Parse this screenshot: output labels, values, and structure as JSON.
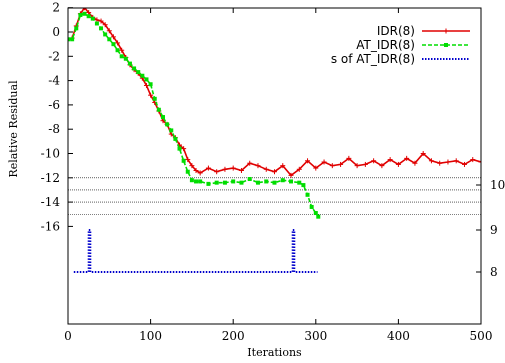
{
  "chart_data": {
    "type": "line",
    "xlabel": "Iterations",
    "ylabel": "Relative Residual",
    "xlim": [
      0,
      500
    ],
    "ylim": [
      -16,
      2
    ],
    "x_ticks": [
      "0",
      "100",
      "200",
      "300",
      "400",
      "500"
    ],
    "y_ticks": [
      "2",
      "0",
      "-2",
      "-4",
      "-6",
      "-8",
      "-10",
      "-12",
      "-14",
      "-16"
    ],
    "y2_ticks": [
      "10",
      "9",
      "8"
    ],
    "y2_note": "right axis shows s, with 8 at left-axis -22.6, 9 at -19.6 and 10 at -15.5 (spacing unequal as drawn)",
    "reference_lines": [
      -12,
      -13,
      -14,
      -15
    ],
    "legend_position": "top-right",
    "series": [
      {
        "name": "IDR(8)",
        "color": "#e00000",
        "style": "solid",
        "marker": "plus",
        "points": [
          [
            0,
            -0.6
          ],
          [
            5,
            -0.5
          ],
          [
            10,
            0.5
          ],
          [
            15,
            1.5
          ],
          [
            20,
            2.0
          ],
          [
            25,
            1.6
          ],
          [
            30,
            1.2
          ],
          [
            35,
            1.0
          ],
          [
            40,
            0.9
          ],
          [
            45,
            0.6
          ],
          [
            50,
            0.1
          ],
          [
            55,
            -0.4
          ],
          [
            60,
            -0.9
          ],
          [
            65,
            -1.5
          ],
          [
            70,
            -2.1
          ],
          [
            75,
            -2.7
          ],
          [
            80,
            -3.1
          ],
          [
            85,
            -3.4
          ],
          [
            90,
            -3.8
          ],
          [
            95,
            -4.4
          ],
          [
            100,
            -5.2
          ],
          [
            105,
            -5.8
          ],
          [
            110,
            -6.5
          ],
          [
            115,
            -7.3
          ],
          [
            120,
            -7.6
          ],
          [
            125,
            -8.4
          ],
          [
            130,
            -8.7
          ],
          [
            135,
            -9.3
          ],
          [
            140,
            -9.6
          ],
          [
            145,
            -10.5
          ],
          [
            150,
            -11.0
          ],
          [
            155,
            -11.4
          ],
          [
            160,
            -11.6
          ],
          [
            170,
            -11.2
          ],
          [
            180,
            -11.5
          ],
          [
            190,
            -11.3
          ],
          [
            200,
            -11.2
          ],
          [
            210,
            -11.4
          ],
          [
            220,
            -10.8
          ],
          [
            230,
            -11.0
          ],
          [
            240,
            -11.3
          ],
          [
            250,
            -11.5
          ],
          [
            260,
            -11.0
          ],
          [
            270,
            -11.8
          ],
          [
            280,
            -11.3
          ],
          [
            290,
            -10.6
          ],
          [
            300,
            -11.2
          ],
          [
            310,
            -10.7
          ],
          [
            320,
            -11.0
          ],
          [
            330,
            -10.9
          ],
          [
            340,
            -10.4
          ],
          [
            350,
            -11.0
          ],
          [
            360,
            -10.9
          ],
          [
            370,
            -10.6
          ],
          [
            380,
            -11.0
          ],
          [
            390,
            -10.5
          ],
          [
            400,
            -10.9
          ],
          [
            410,
            -10.4
          ],
          [
            420,
            -10.8
          ],
          [
            430,
            -10.0
          ],
          [
            440,
            -10.6
          ],
          [
            450,
            -10.8
          ],
          [
            460,
            -10.7
          ],
          [
            470,
            -10.6
          ],
          [
            480,
            -10.9
          ],
          [
            490,
            -10.5
          ],
          [
            500,
            -10.7
          ]
        ]
      },
      {
        "name": "AT_IDR(8)",
        "color": "#00dd00",
        "style": "dashed",
        "marker": "square",
        "points": [
          [
            0,
            -0.6
          ],
          [
            5,
            -0.6
          ],
          [
            10,
            0.3
          ],
          [
            15,
            1.4
          ],
          [
            20,
            1.5
          ],
          [
            25,
            1.3
          ],
          [
            30,
            1.1
          ],
          [
            35,
            0.7
          ],
          [
            40,
            0.3
          ],
          [
            45,
            -0.2
          ],
          [
            50,
            -0.6
          ],
          [
            55,
            -1.0
          ],
          [
            60,
            -1.5
          ],
          [
            65,
            -2.0
          ],
          [
            70,
            -2.2
          ],
          [
            75,
            -2.6
          ],
          [
            80,
            -3.0
          ],
          [
            85,
            -3.3
          ],
          [
            90,
            -3.6
          ],
          [
            95,
            -3.9
          ],
          [
            100,
            -4.3
          ],
          [
            105,
            -5.5
          ],
          [
            110,
            -6.4
          ],
          [
            115,
            -7.0
          ],
          [
            120,
            -7.6
          ],
          [
            125,
            -8.1
          ],
          [
            130,
            -8.8
          ],
          [
            135,
            -9.6
          ],
          [
            140,
            -10.6
          ],
          [
            145,
            -11.5
          ],
          [
            150,
            -12.2
          ],
          [
            155,
            -12.3
          ],
          [
            160,
            -12.3
          ],
          [
            170,
            -12.5
          ],
          [
            180,
            -12.4
          ],
          [
            190,
            -12.4
          ],
          [
            200,
            -12.3
          ],
          [
            210,
            -12.4
          ],
          [
            220,
            -12.1
          ],
          [
            230,
            -12.4
          ],
          [
            240,
            -12.3
          ],
          [
            250,
            -12.4
          ],
          [
            260,
            -12.2
          ],
          [
            270,
            -12.3
          ],
          [
            280,
            -12.4
          ],
          [
            285,
            -12.6
          ],
          [
            290,
            -13.4
          ],
          [
            295,
            -14.4
          ],
          [
            300,
            -14.9
          ],
          [
            303,
            -15.2
          ]
        ]
      },
      {
        "name": "s of AT_IDR(8)",
        "color": "#0000cc",
        "style": "dotted",
        "axis": "right",
        "points": [
          [
            7,
            8
          ],
          [
            25,
            8
          ],
          [
            25,
            9
          ],
          [
            27,
            9
          ],
          [
            27,
            8
          ],
          [
            272,
            8
          ],
          [
            272,
            9
          ],
          [
            274,
            9
          ],
          [
            274,
            8
          ],
          [
            302,
            8
          ]
        ]
      }
    ]
  }
}
